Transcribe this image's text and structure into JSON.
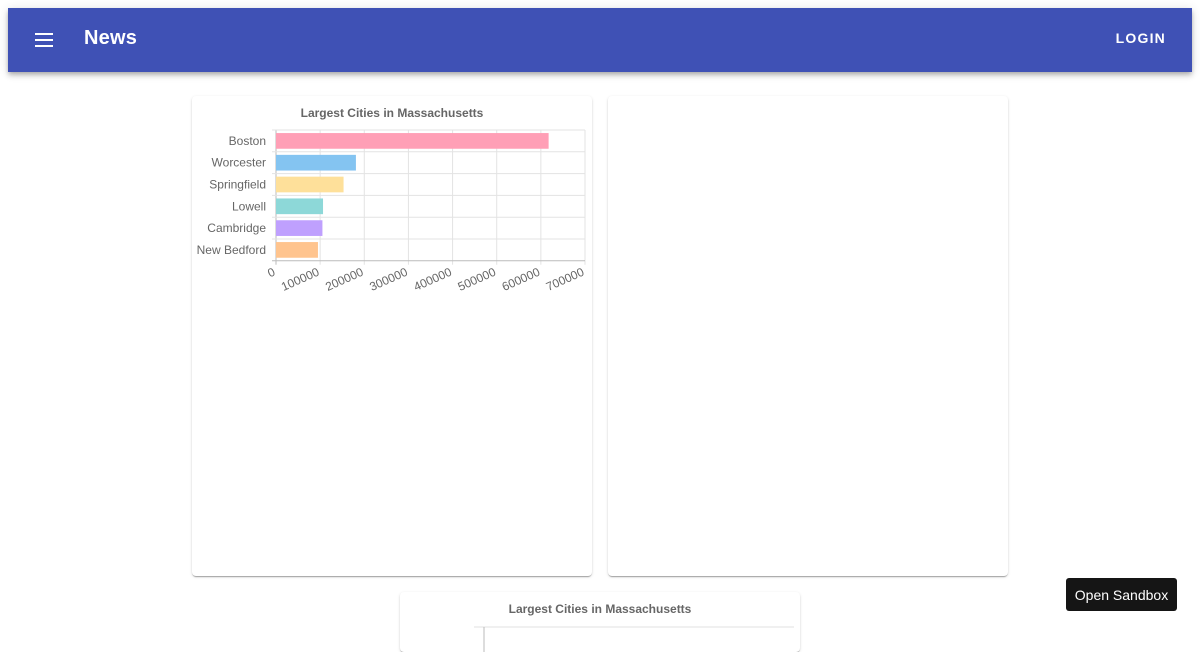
{
  "appbar": {
    "title": "News",
    "login_label": "LOGIN",
    "menu_icon": "menu-icon",
    "color": "#3f51b5"
  },
  "sandbox": {
    "label": "Open Sandbox"
  },
  "chart_data": [
    {
      "type": "bar",
      "orientation": "horizontal",
      "title": "Largest Cities in Massachusetts",
      "categories": [
        "Boston",
        "Worcester",
        "Springfield",
        "Lowell",
        "Cambridge",
        "New Bedford"
      ],
      "values": [
        617594,
        181045,
        153060,
        106519,
        105162,
        95072
      ],
      "colors": [
        "#ff9fb6",
        "#84c4f1",
        "#fee09a",
        "#8dd8d8",
        "#bfa0fe",
        "#ffc48e"
      ],
      "xlim": [
        0,
        700000
      ],
      "xticks": [
        "0",
        "100000",
        "200000",
        "300000",
        "400000",
        "500000",
        "600000",
        "700000"
      ],
      "grid": true,
      "legend": "none"
    },
    {
      "type": "bar",
      "orientation": "horizontal",
      "title": "Largest Cities in Massachusetts",
      "visible": "partial"
    }
  ]
}
